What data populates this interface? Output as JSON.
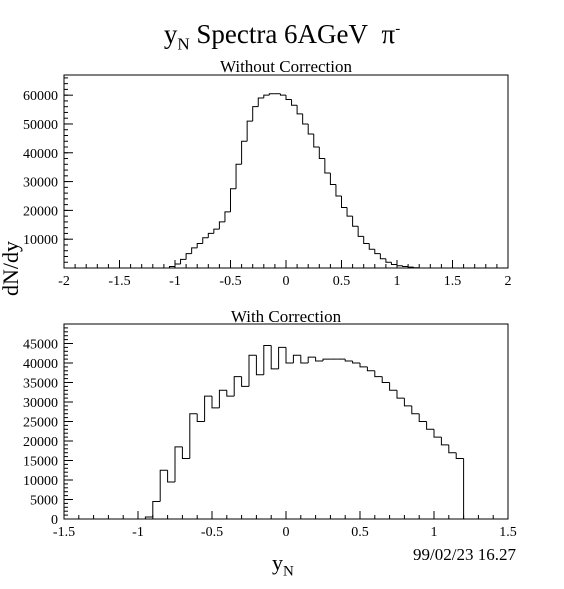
{
  "title": {
    "main": "Spectra 6AGeV",
    "var": "y",
    "var_sub": "N",
    "particle": "π",
    "particle_sup": "-"
  },
  "shared_ylabel": "dN/dy",
  "shared_xlabel": {
    "var": "y",
    "sub": "N"
  },
  "datestamp": "99/02/23   16.27",
  "chart_data": [
    {
      "type": "histogram",
      "title": "Without Correction",
      "xlim": [
        -2,
        2
      ],
      "ylim": [
        0,
        67000
      ],
      "xticks": [
        -2,
        -1.5,
        -1,
        -0.5,
        0,
        0.5,
        1,
        1.5,
        2
      ],
      "xtick_labels": [
        "-2",
        "-1.5",
        "-1",
        "-0.5",
        "0",
        "0.5",
        "1",
        "1.5",
        "2"
      ],
      "yticks": [
        10000,
        20000,
        30000,
        40000,
        50000,
        60000
      ],
      "ytick_labels": [
        "10000",
        "20000",
        "30000",
        "40000",
        "50000",
        "60000"
      ],
      "bin_start": -2.0,
      "bin_width": 0.05,
      "values": [
        0,
        0,
        0,
        0,
        0,
        0,
        0,
        0,
        0,
        0,
        0,
        0,
        0,
        0,
        0,
        0,
        0,
        0,
        0,
        500,
        1400,
        3000,
        5000,
        7000,
        8500,
        10500,
        12000,
        13500,
        16000,
        19500,
        27500,
        36000,
        44000,
        51000,
        56000,
        59000,
        60000,
        60500,
        60500,
        60000,
        58500,
        56500,
        53500,
        50000,
        46500,
        42000,
        38000,
        33000,
        29000,
        25000,
        21000,
        18000,
        14500,
        11000,
        8500,
        6500,
        5000,
        3200,
        2000,
        1200,
        800,
        500,
        300,
        100,
        0,
        0,
        0,
        0,
        0,
        0,
        0,
        0,
        0,
        0,
        0,
        0,
        0,
        0,
        0,
        0
      ],
      "grid": false,
      "legend": "none"
    },
    {
      "type": "histogram",
      "title": "With Correction",
      "xlim": [
        -1.5,
        1.5
      ],
      "ylim": [
        0,
        50000
      ],
      "xticks": [
        -1.5,
        -1,
        -0.5,
        0,
        0.5,
        1,
        1.5
      ],
      "xtick_labels": [
        "-1.5",
        "-1",
        "-0.5",
        "0",
        "0.5",
        "1",
        "1.5"
      ],
      "yticks": [
        0,
        5000,
        10000,
        15000,
        20000,
        25000,
        30000,
        35000,
        40000,
        45000
      ],
      "ytick_labels": [
        "0",
        "5000",
        "10000",
        "15000",
        "20000",
        "25000",
        "30000",
        "35000",
        "40000",
        "45000"
      ],
      "bin_start": -1.5,
      "bin_width": 0.05,
      "values": [
        0,
        0,
        0,
        0,
        0,
        0,
        0,
        0,
        0,
        0,
        0,
        500,
        4500,
        12500,
        9500,
        18500,
        15500,
        27000,
        25000,
        31500,
        28500,
        33000,
        31500,
        36500,
        34000,
        42000,
        37000,
        44500,
        38500,
        44000,
        40000,
        42000,
        40000,
        41500,
        40500,
        41000,
        41000,
        41000,
        40500,
        40000,
        39000,
        38000,
        36500,
        35000,
        33000,
        31000,
        29000,
        27000,
        25000,
        23000,
        21000,
        19000,
        17000,
        15500,
        0,
        0,
        0,
        0,
        0,
        0
      ]
    }
  ]
}
